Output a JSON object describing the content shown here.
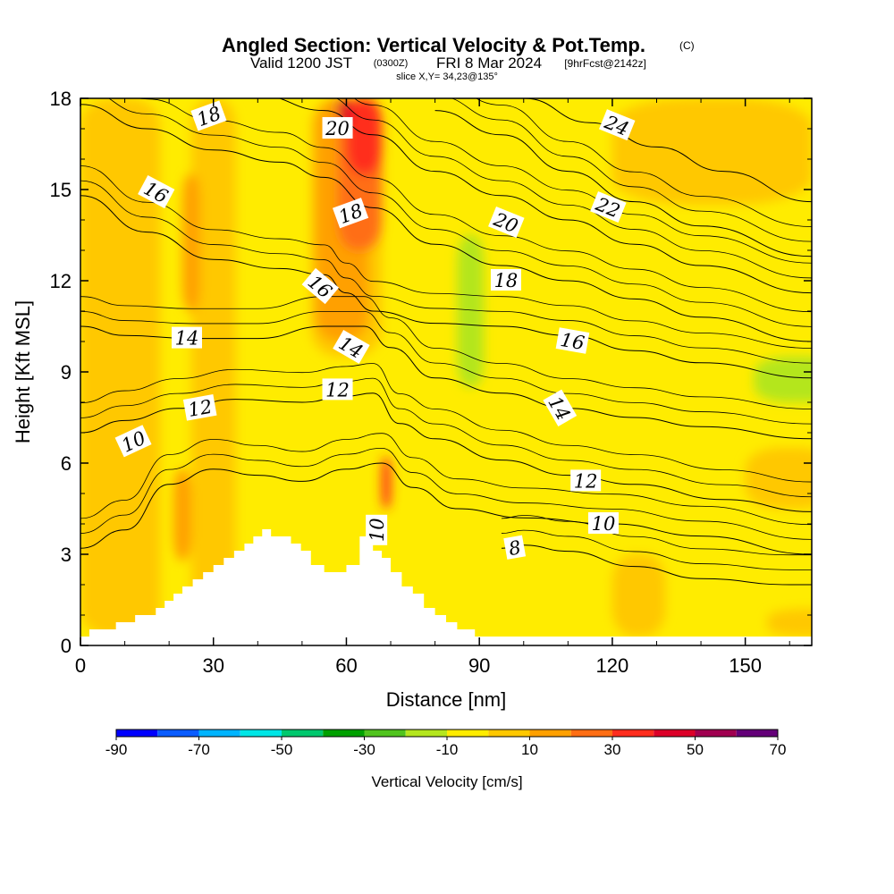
{
  "header": {
    "title": "Angled Section: Vertical Velocity & Pot.Temp.",
    "copyright": "(C)",
    "valid_prefix": "Valid 1200 JST",
    "utc": "(0300Z)",
    "valid_date": "FRI 8 Mar 2024",
    "forecast": "[9hrFcst@2142z]",
    "slice": "slice X,Y= 34,23@135°"
  },
  "chart_data": {
    "type": "heatmap",
    "xlabel": "Distance [nm]",
    "ylabel": "Height [Kft MSL]",
    "xlim": [
      0,
      165
    ],
    "ylim": [
      0,
      18
    ],
    "x_ticks": [
      {
        "value": 0,
        "label": "0"
      },
      {
        "value": 30,
        "label": "30"
      },
      {
        "value": 60,
        "label": "60"
      },
      {
        "value": 90,
        "label": "90"
      },
      {
        "value": 120,
        "label": "120"
      },
      {
        "value": 150,
        "label": "150"
      }
    ],
    "y_ticks": [
      {
        "value": 0,
        "label": "0"
      },
      {
        "value": 3,
        "label": "3"
      },
      {
        "value": 6,
        "label": "6"
      },
      {
        "value": 9,
        "label": "9"
      },
      {
        "value": 12,
        "label": "12"
      },
      {
        "value": 15,
        "label": "15"
      },
      {
        "value": 18,
        "label": "18"
      }
    ],
    "colorbar": {
      "label": "Vertical Velocity [cm/s]",
      "boundaries": [
        -90,
        -80,
        -70,
        -60,
        -50,
        -40,
        -30,
        -20,
        -10,
        0,
        10,
        20,
        30,
        40,
        50,
        60,
        70
      ],
      "tick_labels": [
        "-90",
        "-70",
        "-50",
        "-30",
        "-10",
        "10",
        "30",
        "50",
        "70"
      ],
      "tick_values": [
        -90,
        -70,
        -50,
        -30,
        -10,
        10,
        30,
        50,
        70
      ],
      "colors": [
        "#0000ff",
        "#0a5cff",
        "#00b4ff",
        "#00e6e6",
        "#00c86e",
        "#00a000",
        "#50c31e",
        "#b4e61e",
        "#ffec00",
        "#ffc800",
        "#ffa000",
        "#ff6e14",
        "#ff2d1e",
        "#dc0028",
        "#a00050",
        "#640078"
      ]
    },
    "velocity_regions": [
      {
        "band": "5 to 15",
        "color": "#ffc800",
        "x": 0,
        "y": [
          0.3,
          18
        ],
        "w": 18
      },
      {
        "band": "5 to 15",
        "color": "#ffc800",
        "x": 25,
        "y": [
          0.5,
          18
        ],
        "w": 10
      },
      {
        "band": "15 to 25",
        "color": "#ffa000",
        "x": 23,
        "y": [
          11,
          15.5
        ],
        "w": 4
      },
      {
        "band": "15 to 25",
        "color": "#ffa000",
        "x": 21,
        "y": [
          2.8,
          5.8
        ],
        "w": 4
      },
      {
        "band": "5 to 15",
        "color": "#ffc800",
        "x": 52,
        "y": [
          9.5,
          18
        ],
        "w": 16
      },
      {
        "band": "15 to 25",
        "color": "#ffa000",
        "x": 53,
        "y": [
          10,
          18
        ],
        "w": 12
      },
      {
        "band": "25 to 35",
        "color": "#ff6e14",
        "x": 58,
        "y": [
          13,
          18
        ],
        "w": 10
      },
      {
        "band": "35 to 45",
        "color": "#ff2d1e",
        "x": 60,
        "y": [
          15.5,
          18
        ],
        "w": 8
      },
      {
        "band": "45 to 55",
        "color": "#dc0028",
        "x": 58,
        "y": [
          17,
          18
        ],
        "w": 3
      },
      {
        "band": "35 to 45",
        "color": "#ff2d1e",
        "x": 68,
        "y": [
          4.5,
          6.2
        ],
        "w": 2
      },
      {
        "band": "-15 to -5",
        "color": "#b4e61e",
        "x": 85,
        "y": [
          8.5,
          13.5
        ],
        "w": 6
      },
      {
        "band": "-15 to -5",
        "color": "#b4e61e",
        "x": 152,
        "y": [
          8,
          9.5
        ],
        "w": 20
      },
      {
        "band": "5 to 15",
        "color": "#ffc800",
        "x": 120,
        "y": [
          14.5,
          18
        ],
        "w": 45
      },
      {
        "band": "5 to 15",
        "color": "#ffc800",
        "x": 150,
        "y": [
          4.5,
          6.5
        ],
        "w": 20
      },
      {
        "band": "5 to 15",
        "color": "#ffc800",
        "x": 120,
        "y": [
          0.3,
          3
        ],
        "w": 12
      },
      {
        "band": "5 to 15",
        "color": "#ffc800",
        "x": 155,
        "y": [
          0.3,
          1.2
        ],
        "w": 20
      }
    ],
    "terrain_profile": [
      {
        "x": 0,
        "h": 0.3
      },
      {
        "x": 10,
        "h": 0.65
      },
      {
        "x": 17,
        "h": 1.0
      },
      {
        "x": 23,
        "h": 1.6
      },
      {
        "x": 30,
        "h": 2.3
      },
      {
        "x": 37,
        "h": 3.2
      },
      {
        "x": 43,
        "h": 3.8
      },
      {
        "x": 52,
        "h": 3.2
      },
      {
        "x": 55,
        "h": 2.6
      },
      {
        "x": 60,
        "h": 2.3
      },
      {
        "x": 63,
        "h": 2.6
      },
      {
        "x": 66,
        "h": 3.5
      },
      {
        "x": 70,
        "h": 2.8
      },
      {
        "x": 75,
        "h": 1.9
      },
      {
        "x": 80,
        "h": 1.3
      },
      {
        "x": 85,
        "h": 0.65
      },
      {
        "x": 91,
        "h": 0.3
      },
      {
        "x": 165,
        "h": 0.3
      }
    ],
    "isentropes": [
      {
        "label": "8",
        "points": [
          [
            95,
            3.2
          ],
          [
            100,
            3.3
          ],
          [
            110,
            3.1
          ],
          [
            125,
            2.6
          ],
          [
            140,
            2.2
          ],
          [
            160,
            2.0
          ],
          [
            165,
            2.0
          ]
        ]
      },
      {
        "label": "10",
        "points": [
          [
            0,
            3.2
          ],
          [
            10,
            3.8
          ],
          [
            20,
            5.3
          ],
          [
            30,
            5.8
          ],
          [
            40,
            5.6
          ],
          [
            50,
            5.4
          ],
          [
            60,
            5.8
          ],
          [
            68,
            6.0
          ],
          [
            75,
            5.2
          ],
          [
            85,
            4.5
          ],
          [
            100,
            4.2
          ],
          [
            120,
            4.0
          ],
          [
            140,
            3.6
          ],
          [
            165,
            3.0
          ]
        ]
      },
      {
        "label": "12",
        "points": [
          [
            0,
            7.0
          ],
          [
            10,
            7.4
          ],
          [
            22,
            7.8
          ],
          [
            35,
            8.1
          ],
          [
            50,
            8.0
          ],
          [
            60,
            8.2
          ],
          [
            66,
            8.3
          ],
          [
            72,
            7.3
          ],
          [
            80,
            6.8
          ],
          [
            95,
            6.1
          ],
          [
            110,
            5.6
          ],
          [
            125,
            5.3
          ],
          [
            145,
            4.8
          ],
          [
            165,
            4.4
          ]
        ]
      },
      {
        "label": "14",
        "points": [
          [
            0,
            10.5
          ],
          [
            10,
            10.2
          ],
          [
            25,
            10.1
          ],
          [
            40,
            10.1
          ],
          [
            55,
            10.5
          ],
          [
            64,
            10.5
          ],
          [
            70,
            9.8
          ],
          [
            80,
            8.8
          ],
          [
            95,
            8.3
          ],
          [
            110,
            7.8
          ],
          [
            125,
            7.5
          ],
          [
            140,
            7.2
          ],
          [
            165,
            6.8
          ]
        ]
      },
      {
        "label": "16",
        "points": [
          [
            0,
            14.8
          ],
          [
            15,
            13.6
          ],
          [
            30,
            12.7
          ],
          [
            45,
            12.4
          ],
          [
            55,
            12.2
          ],
          [
            60,
            11.6
          ],
          [
            66,
            11.0
          ],
          [
            80,
            10.6
          ],
          [
            95,
            10.5
          ],
          [
            110,
            10.2
          ],
          [
            125,
            9.7
          ],
          [
            140,
            9.3
          ],
          [
            165,
            8.8
          ]
        ]
      },
      {
        "label": "18",
        "points": [
          [
            0,
            17.8
          ],
          [
            15,
            17.0
          ],
          [
            30,
            16.3
          ],
          [
            45,
            15.9
          ],
          [
            55,
            15.4
          ],
          [
            66,
            14.4
          ],
          [
            80,
            13.2
          ],
          [
            95,
            12.5
          ],
          [
            110,
            12.0
          ],
          [
            125,
            11.4
          ],
          [
            140,
            10.8
          ],
          [
            165,
            10.0
          ]
        ]
      },
      {
        "label": "20",
        "points": [
          [
            0,
            18.3
          ],
          [
            40,
            18.1
          ],
          [
            55,
            17.6
          ],
          [
            66,
            16.8
          ],
          [
            80,
            15.6
          ],
          [
            95,
            14.8
          ],
          [
            110,
            14.0
          ],
          [
            125,
            13.2
          ],
          [
            140,
            12.5
          ],
          [
            165,
            11.6
          ]
        ]
      },
      {
        "label": "22",
        "points": [
          [
            80,
            17.6
          ],
          [
            95,
            16.8
          ],
          [
            110,
            15.6
          ],
          [
            125,
            14.6
          ],
          [
            140,
            13.8
          ],
          [
            165,
            12.8
          ]
        ]
      },
      {
        "label": "24",
        "points": [
          [
            100,
            18.0
          ],
          [
            115,
            17.2
          ],
          [
            130,
            16.4
          ],
          [
            145,
            15.6
          ],
          [
            165,
            14.6
          ]
        ]
      }
    ],
    "contour_labels": [
      {
        "text": "18",
        "x": 29,
        "y": 17.4,
        "rot": -20
      },
      {
        "text": "16",
        "x": 17,
        "y": 14.9,
        "rot": 28
      },
      {
        "text": "20",
        "x": 58,
        "y": 17.0,
        "rot": 0
      },
      {
        "text": "18",
        "x": 61,
        "y": 14.2,
        "rot": -20
      },
      {
        "text": "20",
        "x": 96,
        "y": 13.9,
        "rot": 22
      },
      {
        "text": "22",
        "x": 119,
        "y": 14.4,
        "rot": 22
      },
      {
        "text": "24",
        "x": 121,
        "y": 17.1,
        "rot": 22
      },
      {
        "text": "16",
        "x": 54,
        "y": 11.8,
        "rot": 40
      },
      {
        "text": "18",
        "x": 96,
        "y": 12.0,
        "rot": 0
      },
      {
        "text": "14",
        "x": 24,
        "y": 10.1,
        "rot": 0
      },
      {
        "text": "14",
        "x": 61,
        "y": 9.8,
        "rot": 30
      },
      {
        "text": "16",
        "x": 111,
        "y": 10.0,
        "rot": 10
      },
      {
        "text": "12",
        "x": 58,
        "y": 8.4,
        "rot": 0
      },
      {
        "text": "12",
        "x": 27,
        "y": 7.8,
        "rot": -10
      },
      {
        "text": "10",
        "x": 12,
        "y": 6.7,
        "rot": -25
      },
      {
        "text": "14",
        "x": 108,
        "y": 7.8,
        "rot": 60
      },
      {
        "text": "12",
        "x": 114,
        "y": 5.4,
        "rot": 0
      },
      {
        "text": "10",
        "x": 118,
        "y": 4.0,
        "rot": 0
      },
      {
        "text": "10",
        "x": 67,
        "y": 3.8,
        "rot": -90
      },
      {
        "text": "8",
        "x": 98,
        "y": 3.2,
        "rot": -10
      }
    ]
  }
}
